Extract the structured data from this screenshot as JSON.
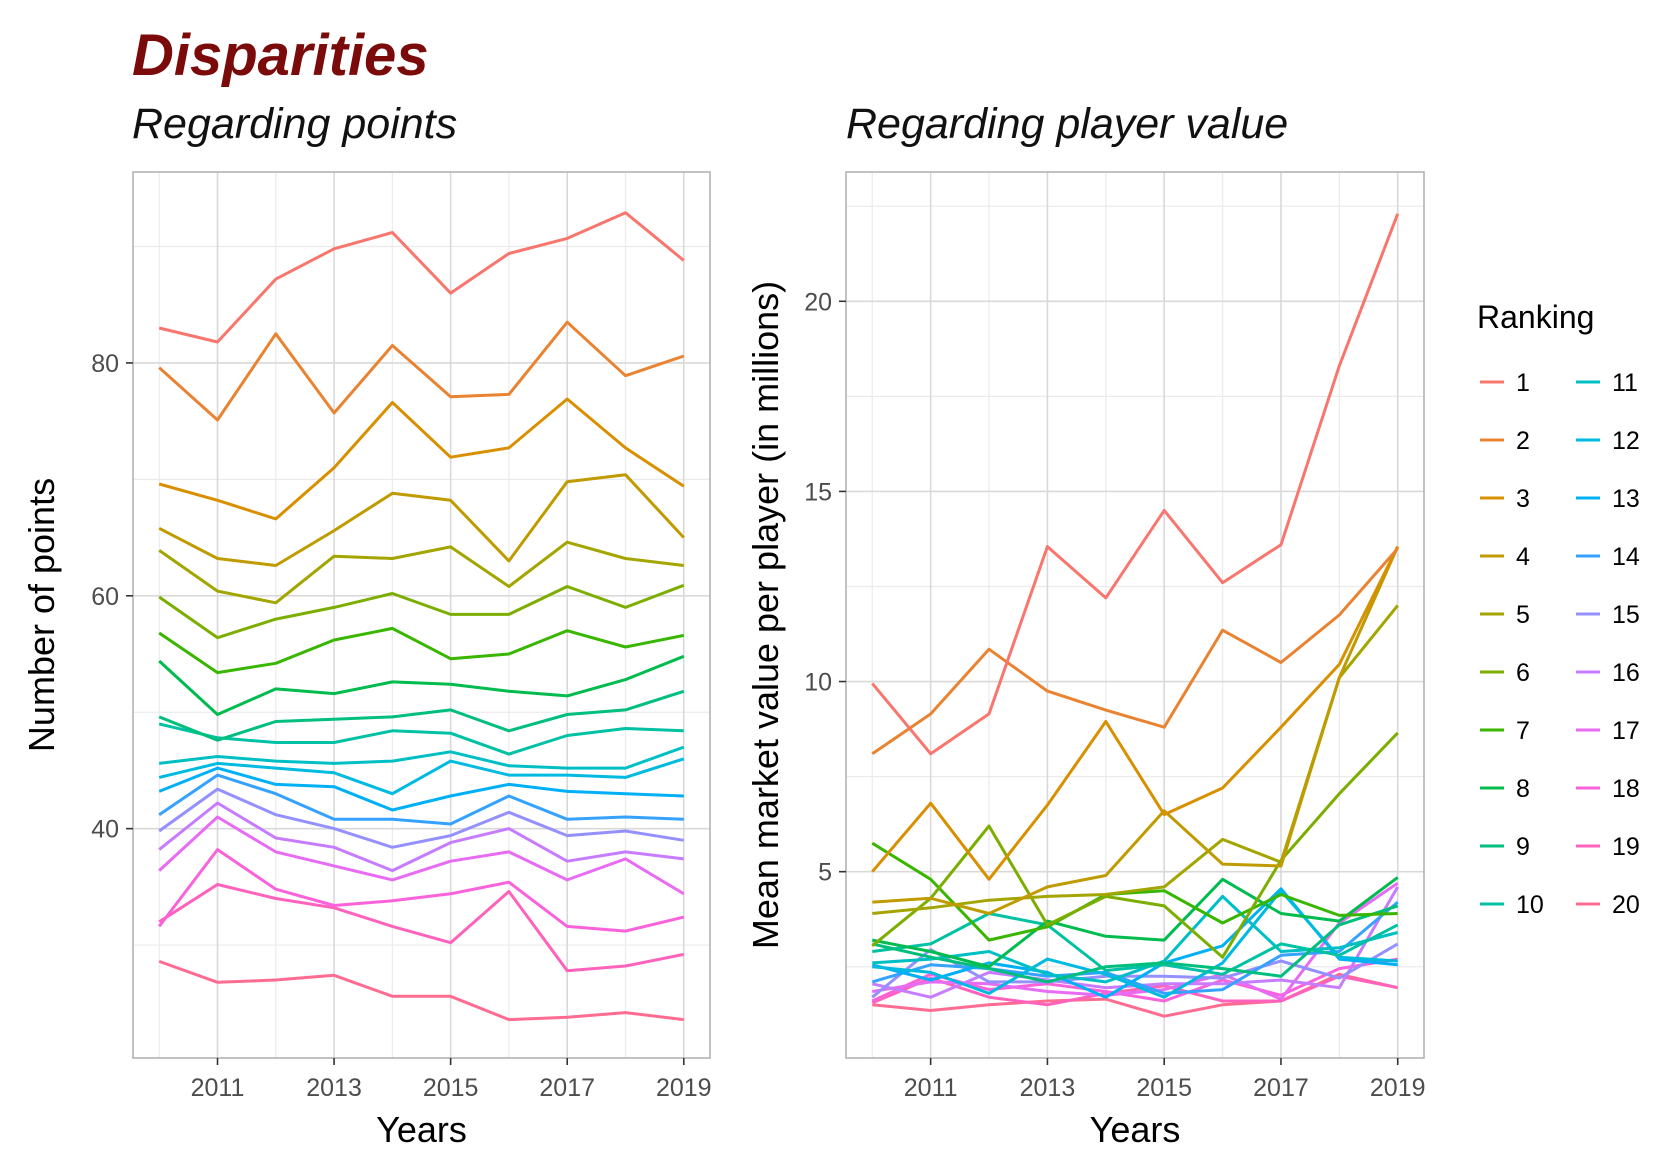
{
  "title": "Disparities",
  "legend": {
    "title": "Ranking",
    "colors": [
      "#F8766D",
      "#EA8331",
      "#D89000",
      "#C09B00",
      "#A3A500",
      "#7CAE00",
      "#39B600",
      "#00BB4E",
      "#00BF7D",
      "#00C1A3",
      "#00BFC4",
      "#00BAE0",
      "#00B0F6",
      "#35A2FF",
      "#9590FF",
      "#C77CFF",
      "#E76BF3",
      "#FA62DB",
      "#FF62BC",
      "#FF6C91"
    ]
  },
  "chart_data": [
    {
      "type": "line",
      "title": "Regarding points",
      "xlabel": "Years",
      "ylabel": "Number of points",
      "x": [
        2010,
        2011,
        2012,
        2013,
        2014,
        2015,
        2016,
        2017,
        2018,
        2019
      ],
      "x_tick_labels": [
        "2011",
        "2013",
        "2015",
        "2017",
        "2019"
      ],
      "x_ticks": [
        2011,
        2013,
        2015,
        2017,
        2019
      ],
      "y_tick_labels": [
        "40",
        "60",
        "80"
      ],
      "y_ticks": [
        40,
        60,
        80
      ],
      "xlim": [
        2009.55,
        2019.45
      ],
      "ylim": [
        20.3,
        96.4
      ],
      "grid": true,
      "series": [
        {
          "name": "1",
          "values": [
            83,
            81.8,
            87.2,
            89.8,
            91.2,
            86,
            89.4,
            90.7,
            92.9,
            88.8
          ]
        },
        {
          "name": "2",
          "values": [
            79.6,
            75.1,
            82.5,
            75.7,
            81.5,
            77.1,
            77.3,
            83.5,
            78.9,
            80.6
          ]
        },
        {
          "name": "3",
          "values": [
            69.6,
            68.2,
            66.6,
            71,
            76.6,
            71.9,
            72.7,
            76.9,
            72.7,
            69.4
          ]
        },
        {
          "name": "4",
          "values": [
            65.8,
            63.2,
            62.6,
            65.6,
            68.8,
            68.2,
            63,
            69.8,
            70.4,
            65
          ]
        },
        {
          "name": "5",
          "values": [
            63.9,
            60.4,
            59.4,
            63.4,
            63.2,
            64.2,
            60.8,
            64.6,
            63.2,
            62.6
          ]
        },
        {
          "name": "6",
          "values": [
            59.9,
            56.4,
            58,
            59,
            60.2,
            58.4,
            58.4,
            60.8,
            59,
            60.9
          ]
        },
        {
          "name": "7",
          "values": [
            56.8,
            53.4,
            54.2,
            56.2,
            57.2,
            54.6,
            55,
            57,
            55.6,
            56.6
          ]
        },
        {
          "name": "8",
          "values": [
            54.4,
            49.8,
            52,
            51.6,
            52.6,
            52.4,
            51.8,
            51.4,
            52.8,
            54.8
          ]
        },
        {
          "name": "9",
          "values": [
            49.6,
            47.6,
            49.2,
            49.4,
            49.6,
            50.2,
            48.4,
            49.8,
            50.2,
            51.8
          ]
        },
        {
          "name": "10",
          "values": [
            49,
            47.8,
            47.4,
            47.4,
            48.4,
            48.2,
            46.4,
            48,
            48.6,
            48.4
          ]
        },
        {
          "name": "11",
          "values": [
            45.6,
            46.2,
            45.8,
            45.6,
            45.8,
            46.6,
            45.4,
            45.2,
            45.2,
            47
          ]
        },
        {
          "name": "12",
          "values": [
            44.4,
            45.6,
            45.2,
            44.8,
            43,
            45.8,
            44.6,
            44.6,
            44.4,
            46
          ]
        },
        {
          "name": "13",
          "values": [
            43.2,
            45.2,
            43.8,
            43.6,
            41.6,
            42.8,
            43.8,
            43.2,
            43,
            42.8
          ]
        },
        {
          "name": "14",
          "values": [
            41.2,
            44.6,
            43,
            40.8,
            40.8,
            40.4,
            42.8,
            40.8,
            41,
            40.8
          ]
        },
        {
          "name": "15",
          "values": [
            39.8,
            43.4,
            41.2,
            40,
            38.4,
            39.4,
            41.4,
            39.4,
            39.8,
            39
          ]
        },
        {
          "name": "16",
          "values": [
            38.2,
            42.2,
            39.2,
            38.4,
            36.4,
            38.8,
            40,
            37.2,
            38,
            37.4
          ]
        },
        {
          "name": "17",
          "values": [
            36.4,
            41,
            38,
            36.8,
            35.6,
            37.2,
            38,
            35.6,
            37.4,
            34.4
          ]
        },
        {
          "name": "18",
          "values": [
            31.6,
            38.2,
            34.8,
            33.4,
            33.8,
            34.4,
            35.4,
            31.6,
            31.2,
            32.4
          ]
        },
        {
          "name": "19",
          "values": [
            32,
            35.2,
            34,
            33.2,
            31.6,
            30.2,
            34.6,
            27.8,
            28.2,
            29.2
          ]
        },
        {
          "name": "20",
          "values": [
            28.6,
            26.8,
            27,
            27.4,
            25.6,
            25.6,
            23.6,
            23.8,
            24.2,
            23.6
          ]
        }
      ]
    },
    {
      "type": "line",
      "title": "Regarding player value",
      "xlabel": "Years",
      "ylabel": "Mean market value per player (in millions)",
      "x": [
        2010,
        2011,
        2012,
        2013,
        2014,
        2015,
        2016,
        2017,
        2018,
        2019
      ],
      "x_tick_labels": [
        "2011",
        "2013",
        "2015",
        "2017",
        "2019"
      ],
      "x_ticks": [
        2011,
        2013,
        2015,
        2017,
        2019
      ],
      "y_tick_labels": [
        "5",
        "10",
        "15",
        "20"
      ],
      "y_ticks": [
        5,
        10,
        15,
        20
      ],
      "xlim": [
        2009.55,
        2019.45
      ],
      "ylim": [
        0.1,
        23.4
      ],
      "grid": true,
      "series": [
        {
          "name": "1",
          "values": [
            9.95,
            8.1,
            9.15,
            13.55,
            12.2,
            14.5,
            12.6,
            13.6,
            18.3,
            22.3
          ]
        },
        {
          "name": "2",
          "values": [
            8.1,
            9.15,
            10.85,
            9.75,
            9.25,
            8.8,
            11.35,
            10.5,
            11.75,
            13.5
          ]
        },
        {
          "name": "3",
          "values": [
            5,
            6.8,
            4.8,
            6.75,
            8.95,
            6.5,
            7.2,
            8.8,
            10.45,
            13.55
          ]
        },
        {
          "name": "4",
          "values": [
            4.2,
            4.3,
            3.9,
            4.6,
            4.9,
            6.6,
            5.2,
            5.15,
            10.1,
            13.55
          ]
        },
        {
          "name": "5",
          "values": [
            3.9,
            4.05,
            4.25,
            4.35,
            4.4,
            4.6,
            5.85,
            5.25,
            10.1,
            12
          ]
        },
        {
          "name": "6",
          "values": [
            3.05,
            4.3,
            6.2,
            3.6,
            4.35,
            4.1,
            2.75,
            5.3,
            7.05,
            8.65
          ]
        },
        {
          "name": "7",
          "values": [
            5.75,
            4.8,
            3.2,
            3.55,
            4.4,
            4.5,
            3.65,
            4.4,
            3.85,
            3.9
          ]
        },
        {
          "name": "8",
          "values": [
            3.2,
            2.9,
            2.5,
            3.7,
            3.3,
            3.2,
            4.8,
            3.9,
            3.7,
            4.85
          ]
        },
        {
          "name": "9",
          "values": [
            3.1,
            2.75,
            2.45,
            2.1,
            2.5,
            2.6,
            2.45,
            2.25,
            3.6,
            4.1
          ]
        },
        {
          "name": "10",
          "values": [
            2.9,
            3.1,
            3.9,
            3.6,
            2.4,
            2.55,
            2.3,
            3.1,
            2.8,
            3.6
          ]
        },
        {
          "name": "11",
          "values": [
            2.6,
            2.7,
            2.9,
            2.3,
            2.1,
            2.65,
            4.35,
            2.9,
            3,
            3.4
          ]
        },
        {
          "name": "12",
          "values": [
            2.5,
            2.35,
            1.8,
            2.7,
            2.3,
            1.7,
            2.6,
            4.5,
            2.75,
            2.65
          ]
        },
        {
          "name": "13",
          "values": [
            2.55,
            2.15,
            2.6,
            2.35,
            1.7,
            2.6,
            3.05,
            4.55,
            2.7,
            2.55
          ]
        },
        {
          "name": "14",
          "values": [
            2.1,
            2.55,
            2.45,
            2.25,
            2.35,
            1.8,
            1.9,
            2.8,
            2.9,
            4.2
          ]
        },
        {
          "name": "15",
          "values": [
            1.7,
            2.95,
            2.1,
            2.1,
            2.25,
            2.25,
            2.2,
            2.65,
            2.2,
            3.1
          ]
        },
        {
          "name": "16",
          "values": [
            2.05,
            1.7,
            2.35,
            2.15,
            1.95,
            2.05,
            2.05,
            2.15,
            1.95,
            4.6
          ]
        },
        {
          "name": "17",
          "values": [
            1.85,
            2.1,
            2.05,
            1.85,
            1.75,
            1.9,
            2.3,
            1.65,
            3.65,
            4.7
          ]
        },
        {
          "name": "18",
          "values": [
            1.6,
            2.3,
            1.9,
            2.05,
            1.85,
            1.6,
            2.15,
            1.75,
            2.45,
            2.7
          ]
        },
        {
          "name": "19",
          "values": [
            1.55,
            2.2,
            1.7,
            1.5,
            1.8,
            2,
            1.6,
            1.6,
            2.25,
            1.95
          ]
        },
        {
          "name": "20",
          "values": [
            1.5,
            1.35,
            1.5,
            1.6,
            1.65,
            1.2,
            1.5,
            1.6,
            2.3,
            1.95
          ]
        }
      ]
    }
  ]
}
